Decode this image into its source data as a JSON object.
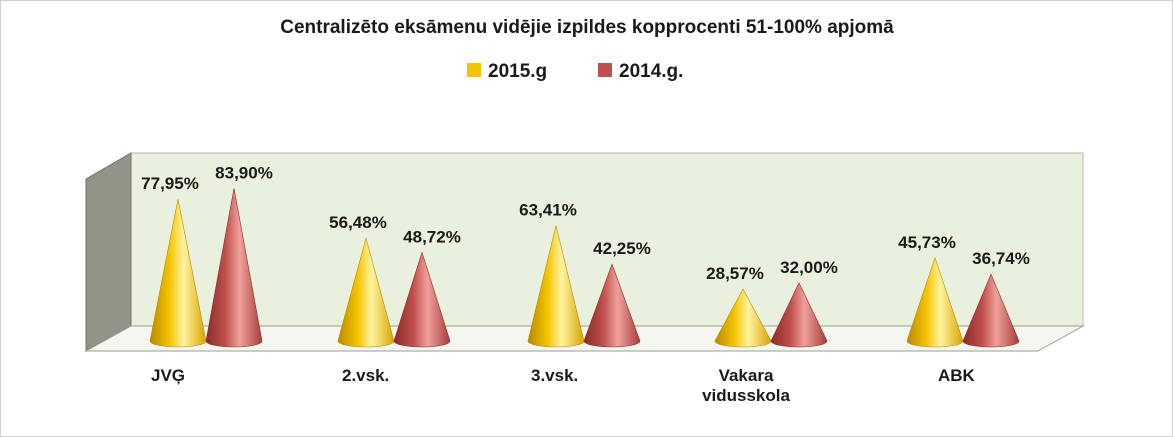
{
  "chart_data": {
    "type": "bar",
    "bar_shape": "cone-3d",
    "title": "Centralizēto eksāmenu vidējie izpildes kopprocenti  51-100% apjomā",
    "categories": [
      "JVĢ",
      "2.vsk.",
      "3.vsk.",
      "Vakara vidusskola",
      "ABK"
    ],
    "category_label_lines": [
      [
        "JVĢ"
      ],
      [
        "2.vsk."
      ],
      [
        "3.vsk."
      ],
      [
        "Vakara",
        "vidusskola"
      ],
      [
        "ABK"
      ]
    ],
    "series": [
      {
        "name": "2015.g",
        "color": "#f5c400",
        "values": [
          77.95,
          56.48,
          63.41,
          28.57,
          45.73
        ],
        "labels": [
          "77,95%",
          "56,48%",
          "63,41%",
          "28,57%",
          "45,73%"
        ]
      },
      {
        "name": "2014.g.",
        "color": "#c0504d",
        "values": [
          83.9,
          48.72,
          42.25,
          32.0,
          36.74
        ],
        "labels": [
          "83,90%",
          "48,72%",
          "42,25%",
          "32,00%",
          "36,74%"
        ]
      }
    ],
    "ylim": [
      0,
      100
    ],
    "legend_position": "top",
    "wall_color": "#e9f0de",
    "side_wall_color": "#909587",
    "grid": false
  }
}
